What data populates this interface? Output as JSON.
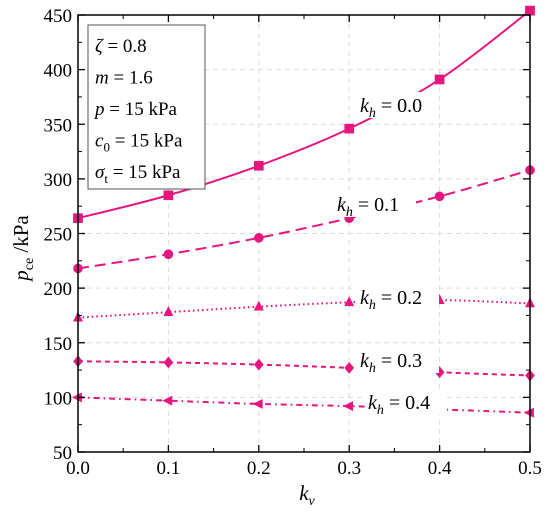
{
  "chart_data": {
    "type": "line",
    "xlabel": "k_v",
    "ylabel": "p_ce / kPa",
    "xlim": [
      0.0,
      0.5
    ],
    "ylim": [
      50,
      450
    ],
    "x_ticks": [
      "0.0",
      "0.1",
      "0.2",
      "0.3",
      "0.4",
      "0.5"
    ],
    "y_ticks": [
      "50",
      "100",
      "150",
      "200",
      "250",
      "300",
      "350",
      "400",
      "450"
    ],
    "grid": true,
    "accent_color": "#e5177f",
    "parameters": [
      {
        "symbol": "ζ",
        "sub": "",
        "text": " = 0.8"
      },
      {
        "symbol": "m",
        "sub": "",
        "text": " = 1.6"
      },
      {
        "symbol": "p",
        "sub": "",
        "text": "  = 15 kPa"
      },
      {
        "symbol": "c",
        "sub": "0",
        "text": " = 15 kPa"
      },
      {
        "symbol": "σ",
        "sub": "t",
        "text": " = 15 kPa"
      }
    ],
    "series": [
      {
        "name": "k_h = 0.0",
        "label_prefix": "k",
        "label_sub": "h",
        "label_value": " = 0.0",
        "marker": "square",
        "dash": "solid",
        "x": [
          0.0,
          0.1,
          0.2,
          0.3,
          0.4,
          0.5
        ],
        "y": [
          264,
          285,
          312,
          346,
          391,
          454
        ]
      },
      {
        "name": "k_h = 0.1",
        "label_prefix": "k",
        "label_sub": "h",
        "label_value": " = 0.1",
        "marker": "circle",
        "dash": "dash",
        "x": [
          0.0,
          0.1,
          0.2,
          0.3,
          0.4,
          0.5
        ],
        "y": [
          218,
          231,
          246,
          264,
          284,
          308
        ]
      },
      {
        "name": "k_h = 0.2",
        "label_prefix": "k",
        "label_sub": "h",
        "label_value": " = 0.2",
        "marker": "triangle",
        "dash": "dot",
        "x": [
          0.0,
          0.1,
          0.2,
          0.3,
          0.4,
          0.5
        ],
        "y": [
          173,
          178,
          183,
          187,
          189,
          186
        ]
      },
      {
        "name": "k_h = 0.3",
        "label_prefix": "k",
        "label_sub": "h",
        "label_value": " = 0.3",
        "marker": "diamond",
        "dash": "shortdash",
        "x": [
          0.0,
          0.1,
          0.2,
          0.3,
          0.4,
          0.5
        ],
        "y": [
          133,
          132,
          130,
          127,
          123,
          120
        ]
      },
      {
        "name": "k_h = 0.4",
        "label_prefix": "k",
        "label_sub": "h",
        "label_value": " = 0.4",
        "marker": "left-triangle",
        "dash": "dashdot",
        "x": [
          0.0,
          0.1,
          0.2,
          0.3,
          0.4,
          0.5
        ],
        "y": [
          100,
          97,
          94,
          92,
          89,
          86
        ]
      }
    ]
  }
}
